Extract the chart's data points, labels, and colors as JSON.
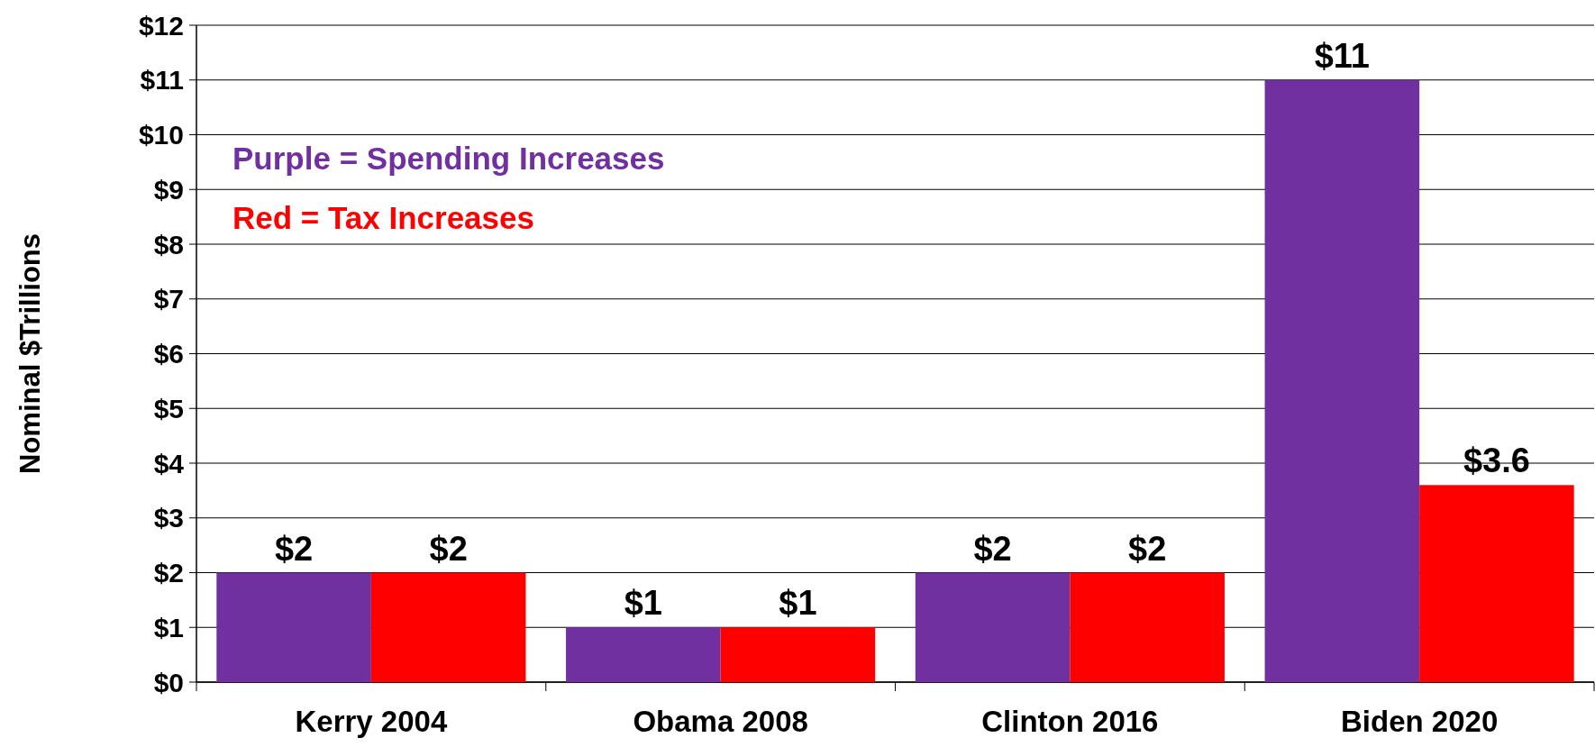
{
  "chart_data": {
    "type": "bar",
    "ylabel": "Nominal $Trillions",
    "categories": [
      "Kerry 2004",
      "Obama 2008",
      "Clinton 2016",
      "Biden 2020"
    ],
    "series": [
      {
        "name": "Purple = Spending Increases",
        "color": "#7030a0",
        "values": [
          2,
          1,
          2,
          11
        ],
        "value_labels": [
          "$2",
          "$1",
          "$2",
          "$11"
        ]
      },
      {
        "name": "Red = Tax Increases",
        "color": "#ff0000",
        "values": [
          2,
          1,
          2,
          3.6
        ],
        "value_labels": [
          "$2",
          "$1",
          "$2",
          "$3.6"
        ]
      }
    ],
    "ylim": [
      0,
      12
    ],
    "yticks": [
      {
        "value": 0,
        "label": "$0"
      },
      {
        "value": 1,
        "label": "$1"
      },
      {
        "value": 2,
        "label": "$2"
      },
      {
        "value": 3,
        "label": "$3"
      },
      {
        "value": 4,
        "label": "$4"
      },
      {
        "value": 5,
        "label": "$5"
      },
      {
        "value": 6,
        "label": "$6"
      },
      {
        "value": 7,
        "label": "$7"
      },
      {
        "value": 8,
        "label": "$8"
      },
      {
        "value": 9,
        "label": "$9"
      },
      {
        "value": 10,
        "label": "$10"
      },
      {
        "value": 11,
        "label": "$11"
      },
      {
        "value": 12,
        "label": "$12"
      }
    ],
    "grid": "y",
    "legend": "top left"
  }
}
